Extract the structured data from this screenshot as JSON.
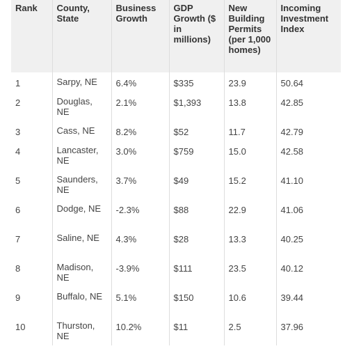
{
  "table": {
    "headers": [
      "Rank",
      "County, State",
      "Business Growth",
      "GDP Growth ($ in millions)",
      "New Building Permits (per 1,000 homes)",
      "Incoming Investment Index"
    ],
    "rows": [
      [
        "1",
        "Sarpy, NE",
        "6.4%",
        "$335",
        "23.9",
        "50.64"
      ],
      [
        "2",
        "Douglas, NE",
        "2.1%",
        "$1,393",
        "13.8",
        "42.85"
      ],
      [
        "3",
        "Cass, NE",
        "8.2%",
        "$52",
        "11.7",
        "42.79"
      ],
      [
        "4",
        "Lancaster, NE",
        "3.0%",
        "$759",
        "15.0",
        "42.58"
      ],
      [
        "5",
        "Saunders, NE",
        "3.7%",
        "$49",
        "15.2",
        "41.10"
      ],
      [
        "6",
        "Dodge, NE",
        "-2.3%",
        "$88",
        "22.9",
        "41.06"
      ],
      [
        "7",
        "Saline, NE",
        "4.3%",
        "$28",
        "13.3",
        "40.25"
      ],
      [
        "8",
        "Madison, NE",
        "-3.9%",
        "$111",
        "23.5",
        "40.12"
      ],
      [
        "9",
        "Buffalo, NE",
        "5.1%",
        "$150",
        "10.6",
        "39.44"
      ],
      [
        "10",
        "Thurston, NE",
        "10.2%",
        "$11",
        "2.5",
        "37.96"
      ]
    ]
  }
}
